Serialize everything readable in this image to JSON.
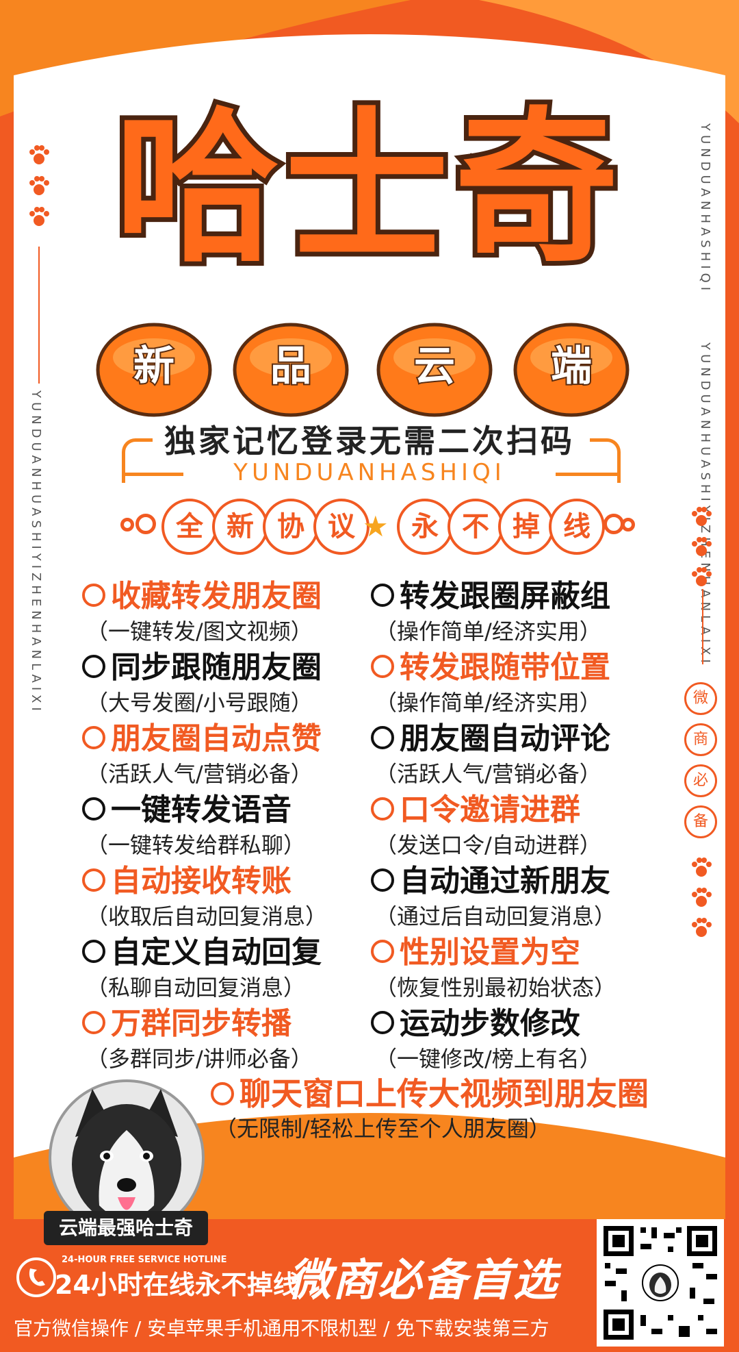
{
  "header": {
    "title": "哈士奇",
    "bubbles": [
      "新",
      "品",
      "云",
      "端"
    ],
    "tagline": "独家记忆登录无需二次扫码",
    "en_sub": "YUNDUANHASHIQI",
    "protocol": [
      "全",
      "新",
      "协",
      "议",
      "永",
      "不",
      "掉",
      "线"
    ]
  },
  "side": {
    "right_vertical": "YUNDUANHASHIQI",
    "left_vertical": "YUNDUANHUASHIYIZHENHANLAIXI",
    "right_vertical2": "YUNDUANHUASHIYIZHENHANLAIXI",
    "right_badges": [
      "微",
      "商",
      "必",
      "备"
    ]
  },
  "features_left": [
    {
      "title": "收藏转发朋友圈",
      "sub": "（一键转发/图文视频）",
      "color": "orange"
    },
    {
      "title": "同步跟随朋友圈",
      "sub": "（大号发圈/小号跟随）",
      "color": "black"
    },
    {
      "title": "朋友圈自动点赞",
      "sub": "（活跃人气/营销必备）",
      "color": "orange"
    },
    {
      "title": "一键转发语音",
      "sub": "（一键转发给群私聊）",
      "color": "black"
    },
    {
      "title": "自动接收转账",
      "sub": "（收取后自动回复消息）",
      "color": "orange"
    },
    {
      "title": "自定义自动回复",
      "sub": "（私聊自动回复消息）",
      "color": "black"
    },
    {
      "title": "万群同步转播",
      "sub": "（多群同步/讲师必备）",
      "color": "orange"
    }
  ],
  "features_right": [
    {
      "title": "转发跟圈屏蔽组",
      "sub": "（操作简单/经济实用）",
      "color": "black"
    },
    {
      "title": "转发跟随带位置",
      "sub": "（操作简单/经济实用）",
      "color": "orange"
    },
    {
      "title": "朋友圈自动评论",
      "sub": "（活跃人气/营销必备）",
      "color": "black"
    },
    {
      "title": "口令邀请进群",
      "sub": "（发送口令/自动进群）",
      "color": "orange"
    },
    {
      "title": "自动通过新朋友",
      "sub": "（通过后自动回复消息）",
      "color": "black"
    },
    {
      "title": "性别设置为空",
      "sub": "（恢复性别最初始状态）",
      "color": "orange"
    },
    {
      "title": "运动步数修改",
      "sub": "（一键修改/榜上有名）",
      "color": "black"
    }
  ],
  "big_feature": {
    "title": "聊天窗口上传大视频到朋友圈",
    "sub": "（无限制/轻松上传至个人朋友圈）"
  },
  "dog_label": "云端最强哈士奇",
  "bottom": {
    "hotline_en": "24-HOUR FREE SERVICE HOTLINE",
    "hotline": "24小时在线永不掉线",
    "slogan": "微商必备首选",
    "footer": "官方微信操作 / 安卓苹果手机通用不限机型 / 免下载安装第三方"
  },
  "colors": {
    "primary": "#f15a22",
    "accent": "#f7851f",
    "dark": "#4a2410"
  }
}
